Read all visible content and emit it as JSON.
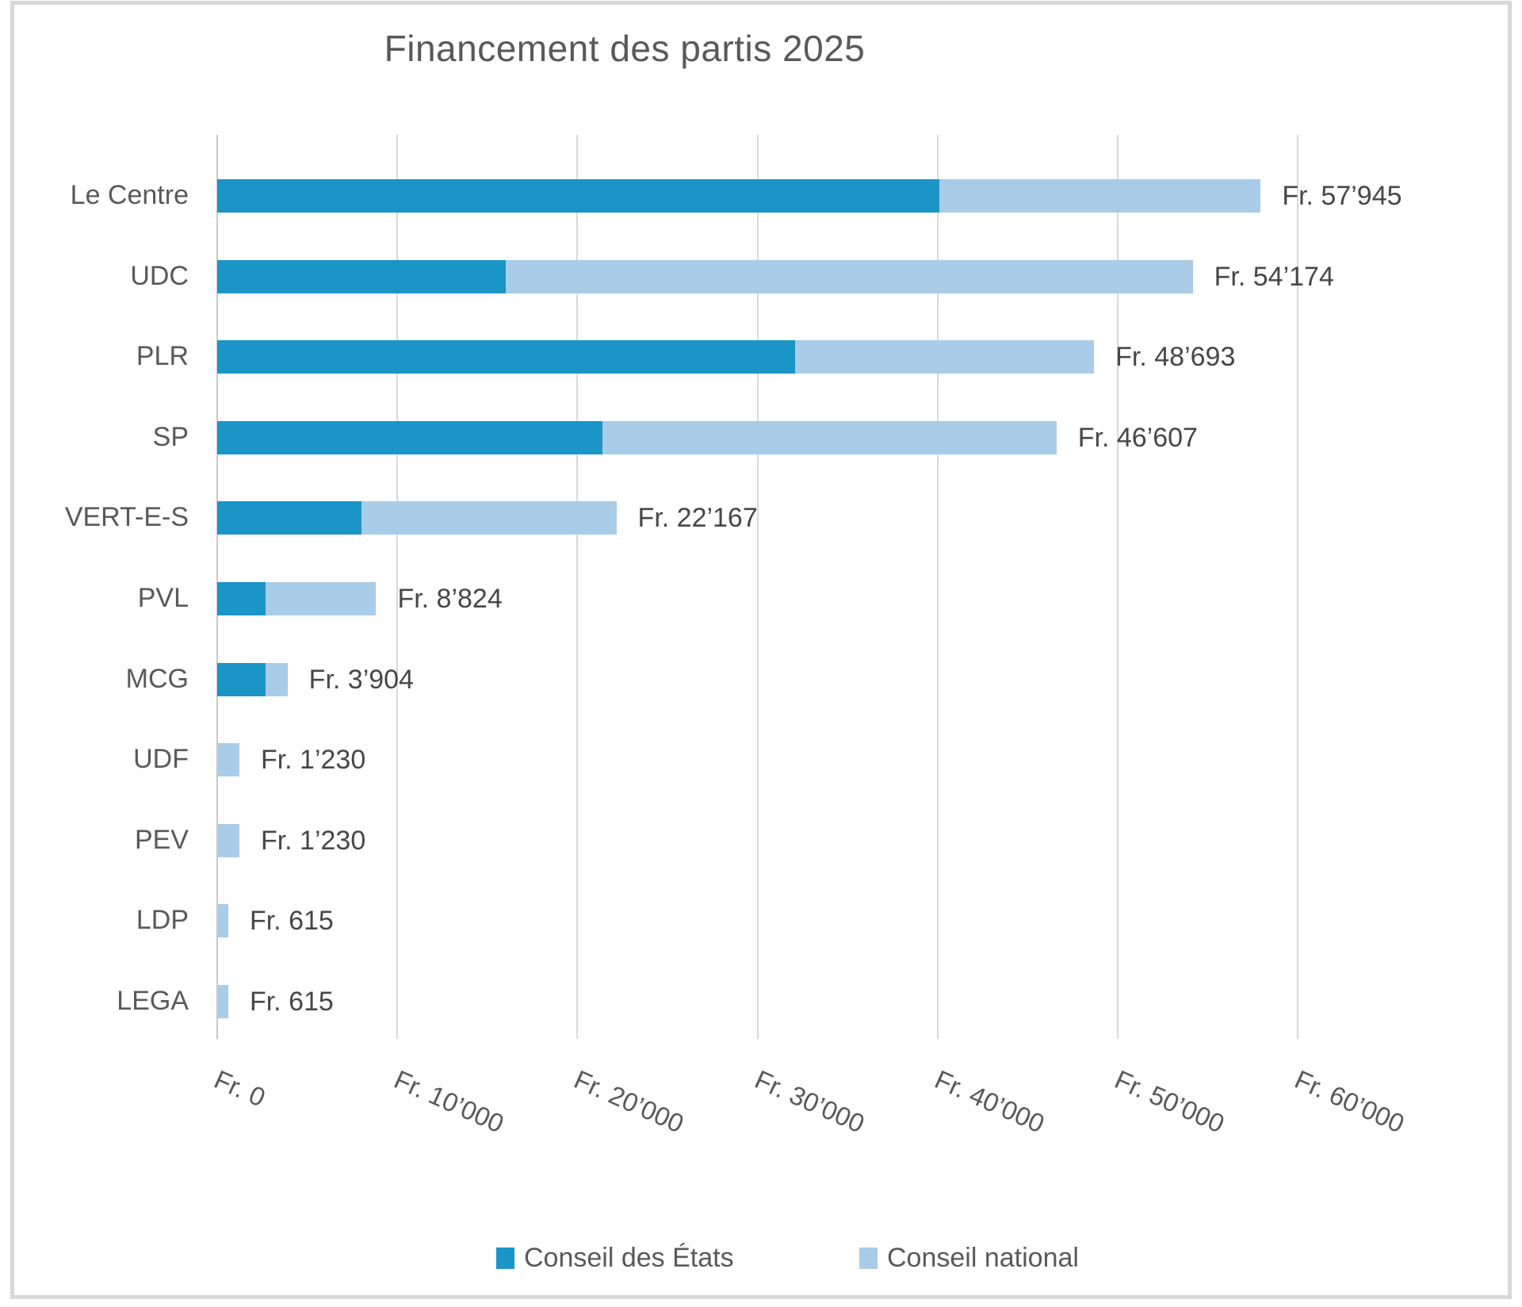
{
  "title": "Financement des partis 2025",
  "chart_data": {
    "type": "bar",
    "orientation": "horizontal",
    "stacked": true,
    "title": "Financement des partis 2025",
    "currency_prefix": "Fr.",
    "categories": [
      "Le Centre",
      "UDC",
      "PLR",
      "SP",
      "VERT-E-S",
      "PVL",
      "MCG",
      "UDF",
      "PEV",
      "LDP",
      "LEGA"
    ],
    "series": [
      {
        "name": "Conseil des États",
        "color": "#1B94C7",
        "values": [
          40110,
          16044,
          32088,
          21392,
          8022,
          2674,
          2674,
          0,
          0,
          0,
          0
        ]
      },
      {
        "name": "Conseil national",
        "color": "#A9CCE8",
        "values": [
          17835,
          38130,
          16605,
          25215,
          14145,
          6150,
          1230,
          1230,
          1230,
          615,
          615
        ]
      }
    ],
    "totals": [
      57945,
      54174,
      48693,
      46607,
      22167,
      8824,
      3904,
      1230,
      1230,
      615,
      615
    ],
    "total_labels": [
      "Fr. 57’945",
      "Fr. 54’174",
      "Fr. 48’693",
      "Fr. 46’607",
      "Fr. 22’167",
      "Fr. 8’824",
      "Fr. 3’904",
      "Fr. 1’230",
      "Fr. 1’230",
      "Fr. 615",
      "Fr. 615"
    ],
    "x_ticks": [
      {
        "value": 0,
        "label": "Fr. 0"
      },
      {
        "value": 10000,
        "label": "Fr. 10’000"
      },
      {
        "value": 20000,
        "label": "Fr. 20’000"
      },
      {
        "value": 30000,
        "label": "Fr. 30’000"
      },
      {
        "value": 40000,
        "label": "Fr. 40’000"
      },
      {
        "value": 50000,
        "label": "Fr. 50’000"
      },
      {
        "value": 60000,
        "label": "Fr. 60’000"
      }
    ],
    "xlim": [
      0,
      60000
    ],
    "grid": "vertical",
    "legend_position": "bottom",
    "colors": {
      "grid": "#D9D9D9",
      "axis": "#C9C9C9",
      "text": "#595959",
      "value_text": "#474747",
      "background": "#FFFFFF",
      "frame_border": "#D8D8D8"
    }
  }
}
